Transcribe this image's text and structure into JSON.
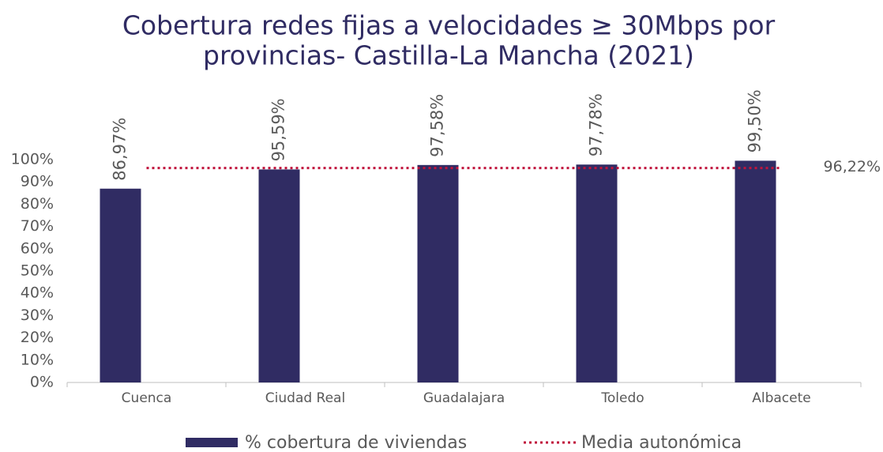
{
  "chart_data": {
    "type": "bar",
    "title": [
      "Cobertura redes fijas a velocidades ≥ 30Mbps por",
      "provincias- Castilla-La Mancha (2021)"
    ],
    "categories": [
      "Cuenca",
      "Ciudad Real",
      "Guadalajara",
      "Toledo",
      "Albacete"
    ],
    "series": [
      {
        "name": "% cobertura de viviendas",
        "color": "#302c63",
        "values": [
          86.97,
          95.59,
          97.58,
          97.78,
          99.5
        ],
        "value_labels": [
          "86,97%",
          "95,59%",
          "97,58%",
          "97,78%",
          "99,50%"
        ]
      }
    ],
    "reference_line": {
      "name": "Media autonómica",
      "color": "#c0143c",
      "value": 96.22,
      "value_label": "96,22%"
    },
    "ylim": [
      0,
      100
    ],
    "yticks": [
      {
        "value": 0,
        "label": "0%"
      },
      {
        "value": 10,
        "label": "10%"
      },
      {
        "value": 20,
        "label": "20%"
      },
      {
        "value": 30,
        "label": "30%"
      },
      {
        "value": 40,
        "label": "40%"
      },
      {
        "value": 50,
        "label": "50%"
      },
      {
        "value": 60,
        "label": "60%"
      },
      {
        "value": 70,
        "label": "70%"
      },
      {
        "value": 80,
        "label": "80%"
      },
      {
        "value": 90,
        "label": "90%"
      },
      {
        "value": 100,
        "label": "100%"
      }
    ],
    "grid": false,
    "legend": "bottom"
  }
}
